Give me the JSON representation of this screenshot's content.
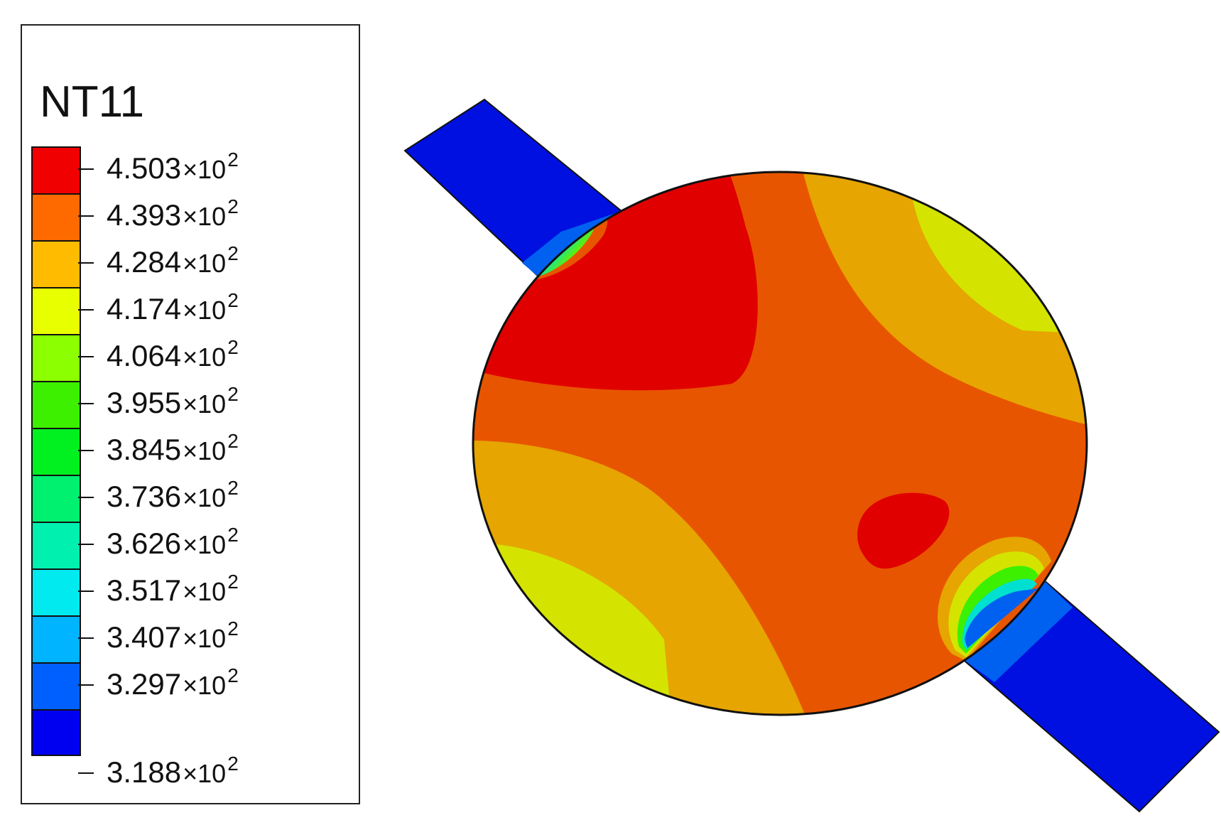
{
  "legend": {
    "title": "NT11",
    "entries": [
      {
        "mantissa": "4.503",
        "exponent": "2",
        "color": "#f00000"
      },
      {
        "mantissa": "4.393",
        "exponent": "2",
        "color": "#ff6a00"
      },
      {
        "mantissa": "4.284",
        "exponent": "2",
        "color": "#ffbb00"
      },
      {
        "mantissa": "4.174",
        "exponent": "2",
        "color": "#e8ff00"
      },
      {
        "mantissa": "4.064",
        "exponent": "2",
        "color": "#8cff00"
      },
      {
        "mantissa": "3.955",
        "exponent": "2",
        "color": "#3cf000"
      },
      {
        "mantissa": "3.845",
        "exponent": "2",
        "color": "#00f020"
      },
      {
        "mantissa": "3.736",
        "exponent": "2",
        "color": "#00f070"
      },
      {
        "mantissa": "3.626",
        "exponent": "2",
        "color": "#00f0b0"
      },
      {
        "mantissa": "3.517",
        "exponent": "2",
        "color": "#00eaf0"
      },
      {
        "mantissa": "3.407",
        "exponent": "2",
        "color": "#00b4ff"
      },
      {
        "mantissa": "3.297",
        "exponent": "2",
        "color": "#0060ff"
      },
      {
        "mantissa": "3.188",
        "exponent": "2",
        "color": "#0000f0"
      }
    ],
    "multiplier": "×10"
  },
  "contour_colors": {
    "red": "#e00000",
    "orange": "#e85500",
    "amber": "#e6a500",
    "yellow": "#d4e400",
    "blue": "#0010e0",
    "mid_blue": "#0060f0"
  }
}
